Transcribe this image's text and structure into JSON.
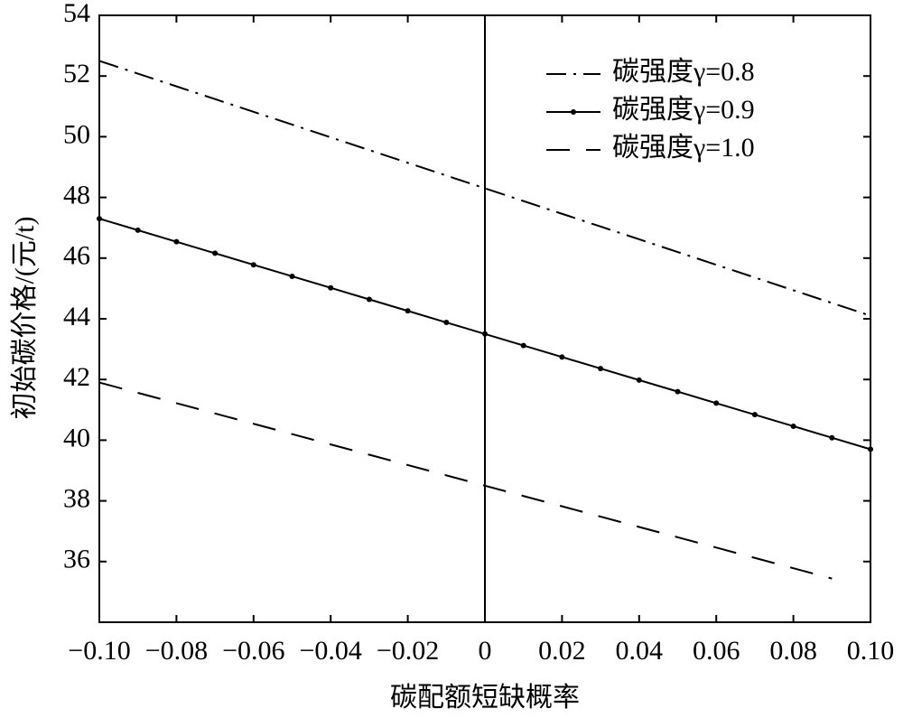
{
  "chart_data": {
    "type": "line",
    "xlabel": "碳配额短缺概率",
    "ylabel": "初始碳价格/(元/t)",
    "x": [
      -0.1,
      -0.09,
      -0.08,
      -0.07,
      -0.06,
      -0.05,
      -0.04,
      -0.03,
      -0.02,
      -0.01,
      0,
      0.01,
      0.02,
      0.03,
      0.04,
      0.05,
      0.06,
      0.07,
      0.08,
      0.09,
      0.1
    ],
    "series": [
      {
        "name": "碳强度γ=0.8",
        "color": "#000000",
        "style": "dashdot",
        "values": [
          52.5,
          52.08,
          51.66,
          51.24,
          50.82,
          50.4,
          49.98,
          49.56,
          49.14,
          48.72,
          48.3,
          47.88,
          47.46,
          47.04,
          46.62,
          46.2,
          45.78,
          45.36,
          44.94,
          44.52,
          44.1
        ]
      },
      {
        "name": "碳强度γ=0.9",
        "color": "#000000",
        "style": "solid",
        "marker": "dot",
        "values": [
          47.3,
          46.92,
          46.54,
          46.16,
          45.78,
          45.4,
          45.02,
          44.64,
          44.26,
          43.88,
          43.5,
          43.12,
          42.74,
          42.36,
          41.98,
          41.6,
          41.22,
          40.84,
          40.46,
          40.08,
          39.7
        ]
      },
      {
        "name": "碳强度γ=1.0",
        "color": "#000000",
        "style": "dashed",
        "values": [
          41.9,
          41.56,
          41.22,
          40.88,
          40.54,
          40.2,
          39.86,
          39.52,
          39.18,
          38.84,
          38.5,
          38.16,
          37.82,
          37.48,
          37.14,
          36.8,
          36.46,
          36.12,
          35.78,
          35.44,
          null
        ]
      }
    ],
    "xlim": [
      -0.1,
      0.1
    ],
    "ylim": [
      34,
      54
    ],
    "xticks": [
      {
        "value": -0.1,
        "label": "−0.10"
      },
      {
        "value": -0.08,
        "label": "−0.08"
      },
      {
        "value": -0.06,
        "label": "−0.06"
      },
      {
        "value": -0.04,
        "label": "−0.04"
      },
      {
        "value": -0.02,
        "label": "−0.02"
      },
      0,
      0.02,
      0.04,
      0.06,
      0.08,
      {
        "value": 0.1,
        "label": "0.10"
      }
    ],
    "yticks": [
      36,
      38,
      40,
      42,
      44,
      46,
      48,
      50,
      52,
      54
    ],
    "zero_line": true,
    "legend": "upper-right",
    "grid": false
  }
}
